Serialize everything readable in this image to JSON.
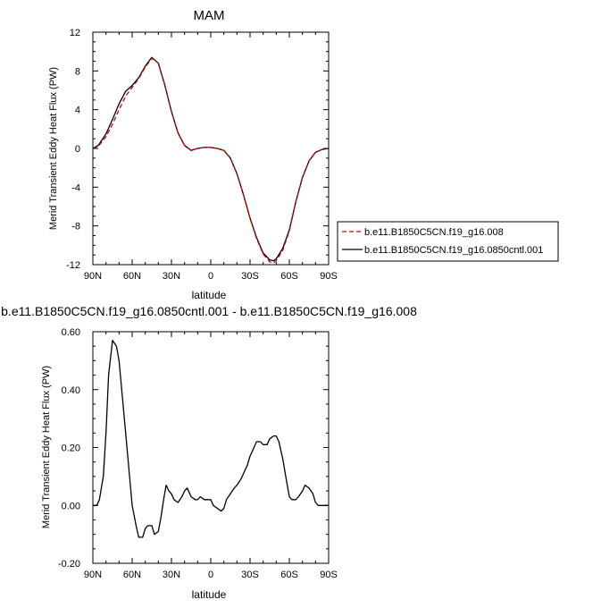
{
  "chart_data": [
    {
      "type": "line",
      "title": "MAM",
      "xlabel": "latitude",
      "ylabel": "Merid Transient Eddy Heat Flux (PW)",
      "xticks": [
        "90N",
        "60N",
        "30N",
        "0",
        "30S",
        "60S",
        "90S"
      ],
      "yticks": [
        "12",
        "8",
        "4",
        "0",
        "-4",
        "-8",
        "-12"
      ],
      "xlim": [
        90,
        -90
      ],
      "ylim": [
        -12,
        12
      ],
      "legend": {
        "placement": "right",
        "entries": [
          "b.e11.B1850C5CN.f19_g16.008",
          "b.e11.B1850C5CN.f19_g16.0850cntl.001"
        ]
      },
      "series": [
        {
          "name": "b.e11.B1850C5CN.f19_g16.008",
          "color": "#cc0000",
          "dash": true,
          "x": [
            90,
            86,
            80,
            75,
            70,
            65,
            60,
            55,
            50,
            45,
            40,
            35,
            30,
            25,
            20,
            15,
            10,
            5,
            0,
            -5,
            -10,
            -15,
            -20,
            -25,
            -30,
            -35,
            -40,
            -45,
            -48,
            -50,
            -55,
            -60,
            -65,
            -70,
            -75,
            -80,
            -85,
            -90
          ],
          "y": [
            0,
            0.2,
            1.2,
            2.5,
            4.0,
            5.4,
            6.3,
            7.2,
            8.4,
            9.3,
            8.8,
            6.5,
            3.8,
            1.6,
            0.3,
            -0.2,
            0.0,
            0.1,
            0.1,
            0.0,
            -0.2,
            -1.0,
            -2.6,
            -4.8,
            -7.2,
            -9.3,
            -10.9,
            -11.7,
            -11.8,
            -11.6,
            -10.5,
            -8.5,
            -5.5,
            -3.0,
            -1.3,
            -0.4,
            -0.1,
            0.0
          ]
        },
        {
          "name": "b.e11.B1850C5CN.f19_g16.0850cntl.001",
          "color": "#000000",
          "dash": false,
          "x": [
            90,
            86,
            80,
            75,
            70,
            65,
            60,
            55,
            50,
            45,
            40,
            35,
            30,
            25,
            20,
            15,
            10,
            5,
            0,
            -5,
            -10,
            -15,
            -20,
            -25,
            -30,
            -35,
            -40,
            -45,
            -48,
            -50,
            -55,
            -60,
            -65,
            -70,
            -75,
            -80,
            -85,
            -90
          ],
          "y": [
            0,
            0.3,
            1.5,
            3.0,
            4.6,
            5.9,
            6.5,
            7.3,
            8.5,
            9.4,
            8.8,
            6.5,
            3.8,
            1.6,
            0.3,
            -0.2,
            0.0,
            0.1,
            0.1,
            0.0,
            -0.2,
            -1.0,
            -2.6,
            -4.8,
            -7.2,
            -9.2,
            -10.8,
            -11.5,
            -11.6,
            -11.4,
            -10.3,
            -8.4,
            -5.5,
            -3.0,
            -1.3,
            -0.4,
            -0.1,
            0.0
          ]
        }
      ]
    },
    {
      "type": "line",
      "title": "b.e11.B1850C5CN.f19_g16.0850cntl.001 - b.e11.B1850C5CN.f19_g16.008",
      "xlabel": "latitude",
      "ylabel": "Merid Transient Eddy Heat Flux (PW)",
      "xticks": [
        "90N",
        "60N",
        "30N",
        "0",
        "30S",
        "60S",
        "90S"
      ],
      "yticks": [
        "0.60",
        "0.40",
        "0.20",
        "0.00",
        "-0.20"
      ],
      "xlim": [
        90,
        -90
      ],
      "ylim": [
        -0.2,
        0.6
      ],
      "series": [
        {
          "color": "#000000",
          "dash": false,
          "x": [
            90,
            87,
            85,
            82,
            80,
            78,
            75,
            72,
            70,
            68,
            65,
            62,
            60,
            57,
            55,
            52,
            50,
            48,
            45,
            43,
            40,
            38,
            36,
            34,
            32,
            30,
            28,
            25,
            22,
            20,
            18,
            15,
            12,
            10,
            8,
            5,
            2,
            0,
            -2,
            -5,
            -8,
            -10,
            -12,
            -15,
            -18,
            -20,
            -23,
            -25,
            -28,
            -30,
            -33,
            -35,
            -38,
            -40,
            -43,
            -45,
            -48,
            -50,
            -52,
            -55,
            -58,
            -60,
            -62,
            -65,
            -67,
            -70,
            -72,
            -75,
            -78,
            -80,
            -82,
            -85,
            -87,
            -90
          ],
          "y": [
            0.0,
            0.0,
            0.02,
            0.1,
            0.25,
            0.45,
            0.57,
            0.55,
            0.5,
            0.4,
            0.25,
            0.1,
            0.0,
            -0.07,
            -0.11,
            -0.11,
            -0.08,
            -0.07,
            -0.07,
            -0.1,
            -0.09,
            -0.04,
            0.02,
            0.07,
            0.05,
            0.04,
            0.02,
            0.01,
            0.03,
            0.05,
            0.06,
            0.03,
            0.02,
            0.02,
            0.03,
            0.02,
            0.02,
            0.02,
            0.0,
            -0.01,
            -0.02,
            -0.01,
            0.02,
            0.04,
            0.06,
            0.07,
            0.09,
            0.11,
            0.14,
            0.17,
            0.2,
            0.22,
            0.22,
            0.21,
            0.21,
            0.23,
            0.24,
            0.24,
            0.22,
            0.16,
            0.08,
            0.03,
            0.02,
            0.02,
            0.03,
            0.05,
            0.07,
            0.06,
            0.04,
            0.01,
            0.0,
            0.0,
            0.0,
            0.0
          ]
        }
      ]
    }
  ]
}
